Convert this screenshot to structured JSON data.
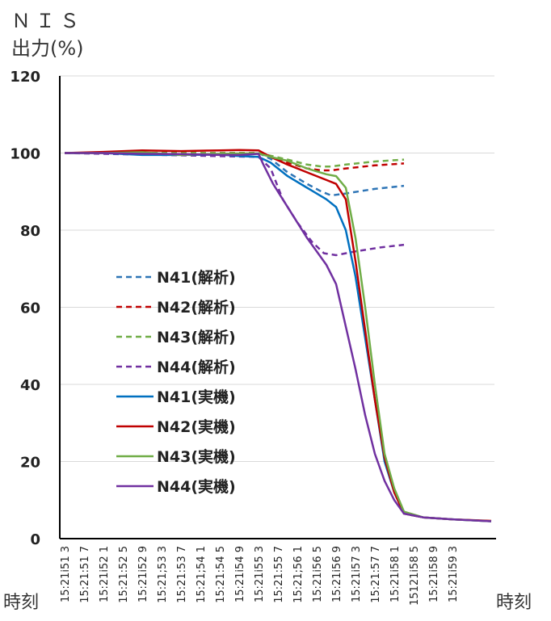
{
  "chart_data": {
    "type": "line",
    "ylabel_line1": "ＮＩＳ",
    "ylabel_line2": "出力(%)",
    "xlabel_left": "時刻",
    "xlabel_right": "時刻",
    "ylim": [
      0,
      120
    ],
    "yticks": [
      "0",
      "20",
      "40",
      "60",
      "80",
      "100",
      "120"
    ],
    "ytick_values": [
      0,
      20,
      40,
      60,
      80,
      100,
      120
    ],
    "grid": true,
    "legend_position": "center-left",
    "categories": [
      "15:21i51 3",
      "15:21:51 7",
      "15:21i52 1",
      "15:21:52 5",
      "15:21i52 9",
      "15:21;53 3",
      "15:21:53 7",
      "15:21;54 1",
      "15:21:54 5",
      "15:21i54 9",
      "15:21i55 3",
      "15:21:55 7",
      "15:21;56 1",
      "15:21i56 5",
      "15:21i56 9",
      "15:21i57 3",
      "15:21:57 7",
      "15:21i58 1",
      "15121i58 5",
      "15:21i58 9",
      "15:21i59 3"
    ],
    "x_times": [
      0.0,
      0.4,
      0.8,
      1.2,
      1.6,
      2.0,
      2.4,
      2.8,
      3.2,
      3.6,
      4.0,
      4.4,
      4.8,
      5.2,
      5.6,
      6.0,
      6.4,
      6.8,
      7.2,
      7.6,
      8.0
    ],
    "series": [
      {
        "name": "N41(解析)",
        "color": "#2e75b6",
        "dash": true,
        "x": [
          0.0,
          4.0,
          4.25,
          4.6,
          5.0,
          5.3,
          5.5,
          5.8,
          6.4,
          7.0
        ],
        "y": [
          100,
          100,
          98.5,
          95,
          92,
          90,
          89,
          89.5,
          90.7,
          91.5
        ]
      },
      {
        "name": "N42(解析)",
        "color": "#c00000",
        "dash": true,
        "x": [
          0.0,
          4.0,
          4.25,
          4.6,
          5.0,
          5.3,
          5.5,
          5.8,
          6.4,
          7.0
        ],
        "y": [
          100,
          100,
          99,
          97.5,
          96,
          95.5,
          95.5,
          96,
          96.8,
          97.3
        ]
      },
      {
        "name": "N43(解析)",
        "color": "#70ad47",
        "dash": true,
        "x": [
          0.0,
          4.0,
          4.25,
          4.6,
          5.0,
          5.3,
          5.5,
          5.8,
          6.4,
          7.0
        ],
        "y": [
          100,
          100,
          99.3,
          98.3,
          97,
          96.5,
          96.5,
          97,
          97.8,
          98.3
        ]
      },
      {
        "name": "N44(解析)",
        "color": "#7030a0",
        "dash": true,
        "x": [
          0.0,
          4.0,
          4.25,
          4.5,
          4.8,
          5.1,
          5.35,
          5.6,
          6.0,
          6.5,
          7.0
        ],
        "y": [
          100,
          99,
          96,
          88,
          82,
          77,
          74,
          73.5,
          74.5,
          75.5,
          76.2
        ]
      },
      {
        "name": "N41(実機)",
        "color": "#0070c0",
        "dash": false,
        "x": [
          0.0,
          0.8,
          1.6,
          2.4,
          3.2,
          3.6,
          4.0,
          4.25,
          4.6,
          5.0,
          5.4,
          5.6,
          5.8,
          6.0,
          6.2,
          6.4,
          6.6,
          6.8,
          7.0,
          7.4,
          8.0,
          8.8
        ],
        "y": [
          100,
          100,
          99.5,
          99.5,
          99.6,
          99.2,
          99,
          97.5,
          94,
          91,
          88,
          86,
          80,
          68,
          52,
          36,
          20,
          12,
          6.5,
          5.5,
          5,
          4.5
        ]
      },
      {
        "name": "N42(実機)",
        "color": "#c00000",
        "dash": false,
        "x": [
          0.0,
          0.8,
          1.6,
          2.4,
          3.2,
          3.6,
          4.0,
          4.25,
          4.6,
          5.0,
          5.4,
          5.6,
          5.8,
          6.0,
          6.2,
          6.4,
          6.6,
          6.8,
          7.0,
          7.4,
          8.0,
          8.8
        ],
        "y": [
          100,
          100.3,
          100.7,
          100.5,
          100.7,
          100.8,
          100.7,
          99,
          97,
          95,
          93,
          92,
          88,
          72,
          54,
          36,
          21,
          12,
          6.5,
          5.5,
          5,
          4.6
        ]
      },
      {
        "name": "N43(実機)",
        "color": "#70ad47",
        "dash": false,
        "x": [
          0.0,
          0.8,
          1.6,
          2.4,
          3.2,
          3.6,
          4.0,
          4.25,
          4.6,
          5.0,
          5.4,
          5.6,
          5.8,
          6.0,
          6.2,
          6.4,
          6.6,
          6.8,
          7.0,
          7.4,
          8.0,
          8.8
        ],
        "y": [
          100,
          100,
          100.2,
          99.5,
          99.8,
          99.9,
          99.9,
          99,
          98,
          96,
          94.5,
          94,
          91,
          78,
          60,
          40,
          22,
          13,
          7,
          5.5,
          5,
          4.5
        ]
      },
      {
        "name": "N44(実機)",
        "color": "#7030a0",
        "dash": false,
        "x": [
          0.0,
          0.8,
          1.6,
          2.4,
          3.2,
          3.6,
          4.0,
          4.1,
          4.3,
          4.6,
          5.0,
          5.4,
          5.6,
          5.8,
          6.0,
          6.2,
          6.4,
          6.6,
          6.8,
          7.0,
          7.4,
          8.0,
          8.8
        ],
        "y": [
          100,
          100,
          99.8,
          99.7,
          99.5,
          99.5,
          99.8,
          97,
          92,
          86,
          78,
          71,
          66,
          55,
          44,
          32,
          22,
          15,
          10,
          6.5,
          5.5,
          5,
          4.5
        ]
      }
    ]
  }
}
